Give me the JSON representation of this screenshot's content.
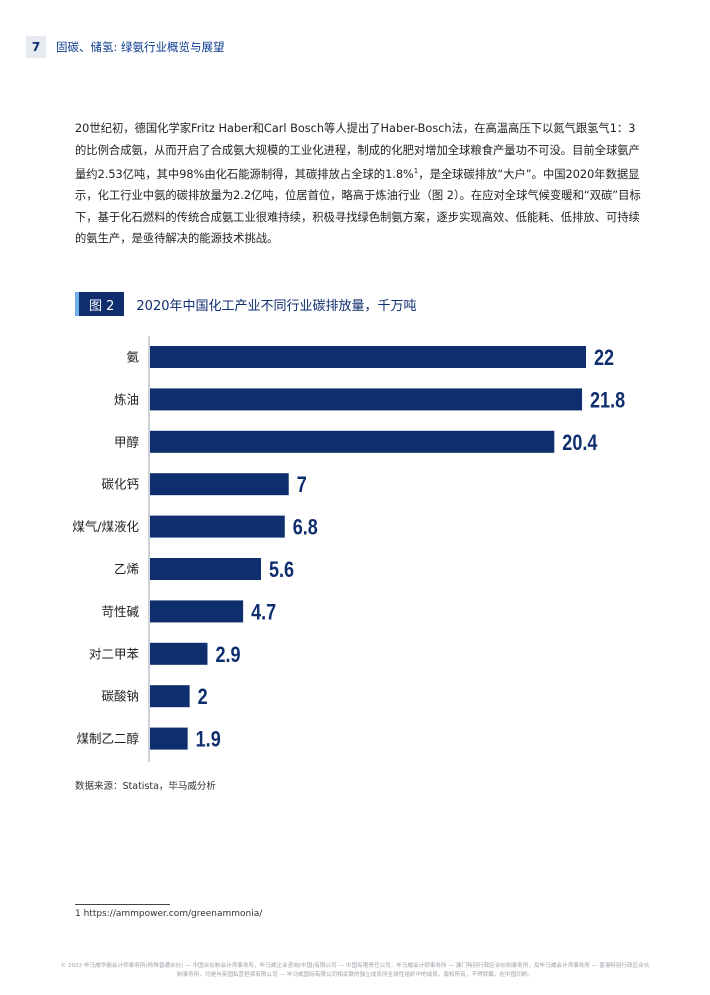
{
  "header": {
    "page_number": "7",
    "title": "固碳、储氢: 绿氨行业概览与展望"
  },
  "body": {
    "paragraph_main": "20世纪初，德国化学家Fritz Haber和Carl Bosch等人提出了Haber-Bosch法，在高温高压下以氮气跟氢气1：3的比例合成氨，从而开启了合成氨大规模的工业化进程，制成的化肥对增加全球粮食产量功不可没。目前全球氨产量约2.53亿吨，其中98%由化石能源制得，其碳排放占全球的1.8%",
    "footnote_ref": "1",
    "paragraph_rest": "，是全球碳排放“大户”。中国2020年数据显示，化工行业中氨的碳排放量为2.2亿吨，位居首位，略高于炼油行业（图 2）。在应对全球气候变暖和“双碳”目标下，基于化石燃料的传统合成氨工业很难持续，积极寻找绿色制氨方案，逐步实现高效、低能耗、低排放、可持续的氨生产，是亟待解决的能源技术挑战。"
  },
  "figure": {
    "tag": "图 2",
    "title": "2020年中国化工产业不同行业碳排放量，千万吨"
  },
  "chart_data": {
    "type": "bar",
    "orientation": "horizontal",
    "title": "2020年中国化工产业不同行业碳排放量，千万吨",
    "categories": [
      "氨",
      "炼油",
      "甲醇",
      "碳化钙",
      "煤气/煤液化",
      "乙烯",
      "苛性碱",
      "对二甲苯",
      "碳酸钠",
      "煤制乙二醇"
    ],
    "values": [
      22,
      21.8,
      20.4,
      7,
      6.8,
      5.6,
      4.7,
      2.9,
      2,
      1.9
    ],
    "value_labels": [
      "22",
      "21.8",
      "20.4",
      "7",
      "6.8",
      "5.6",
      "4.7",
      "2.9",
      "2",
      "1.9"
    ],
    "xlim": [
      0,
      22
    ],
    "grid": false,
    "legend": "none",
    "bar_color": "#0f2e6e"
  },
  "source": "数据来源：Statista，毕马威分析",
  "footnote": "1 https://ammpower.com/greenammonia/",
  "copyright": "© 2022 毕马威华振会计师事务所(特殊普通合伙) — 中国合伙制会计师事务所，毕马威企业咨询(中国)有限公司 — 中国有限责任公司，毕马威会计师事务所 — 澳门特别行政区合伙制事务所，及毕马威会计师事务所 — 香港特别行政区合伙制事务所，均是与英国私营担保有限公司 — 毕马威国际有限公司相关联的独立成员所全球性组织中的成员。版权所有，不得转载。在中国印刷。"
}
